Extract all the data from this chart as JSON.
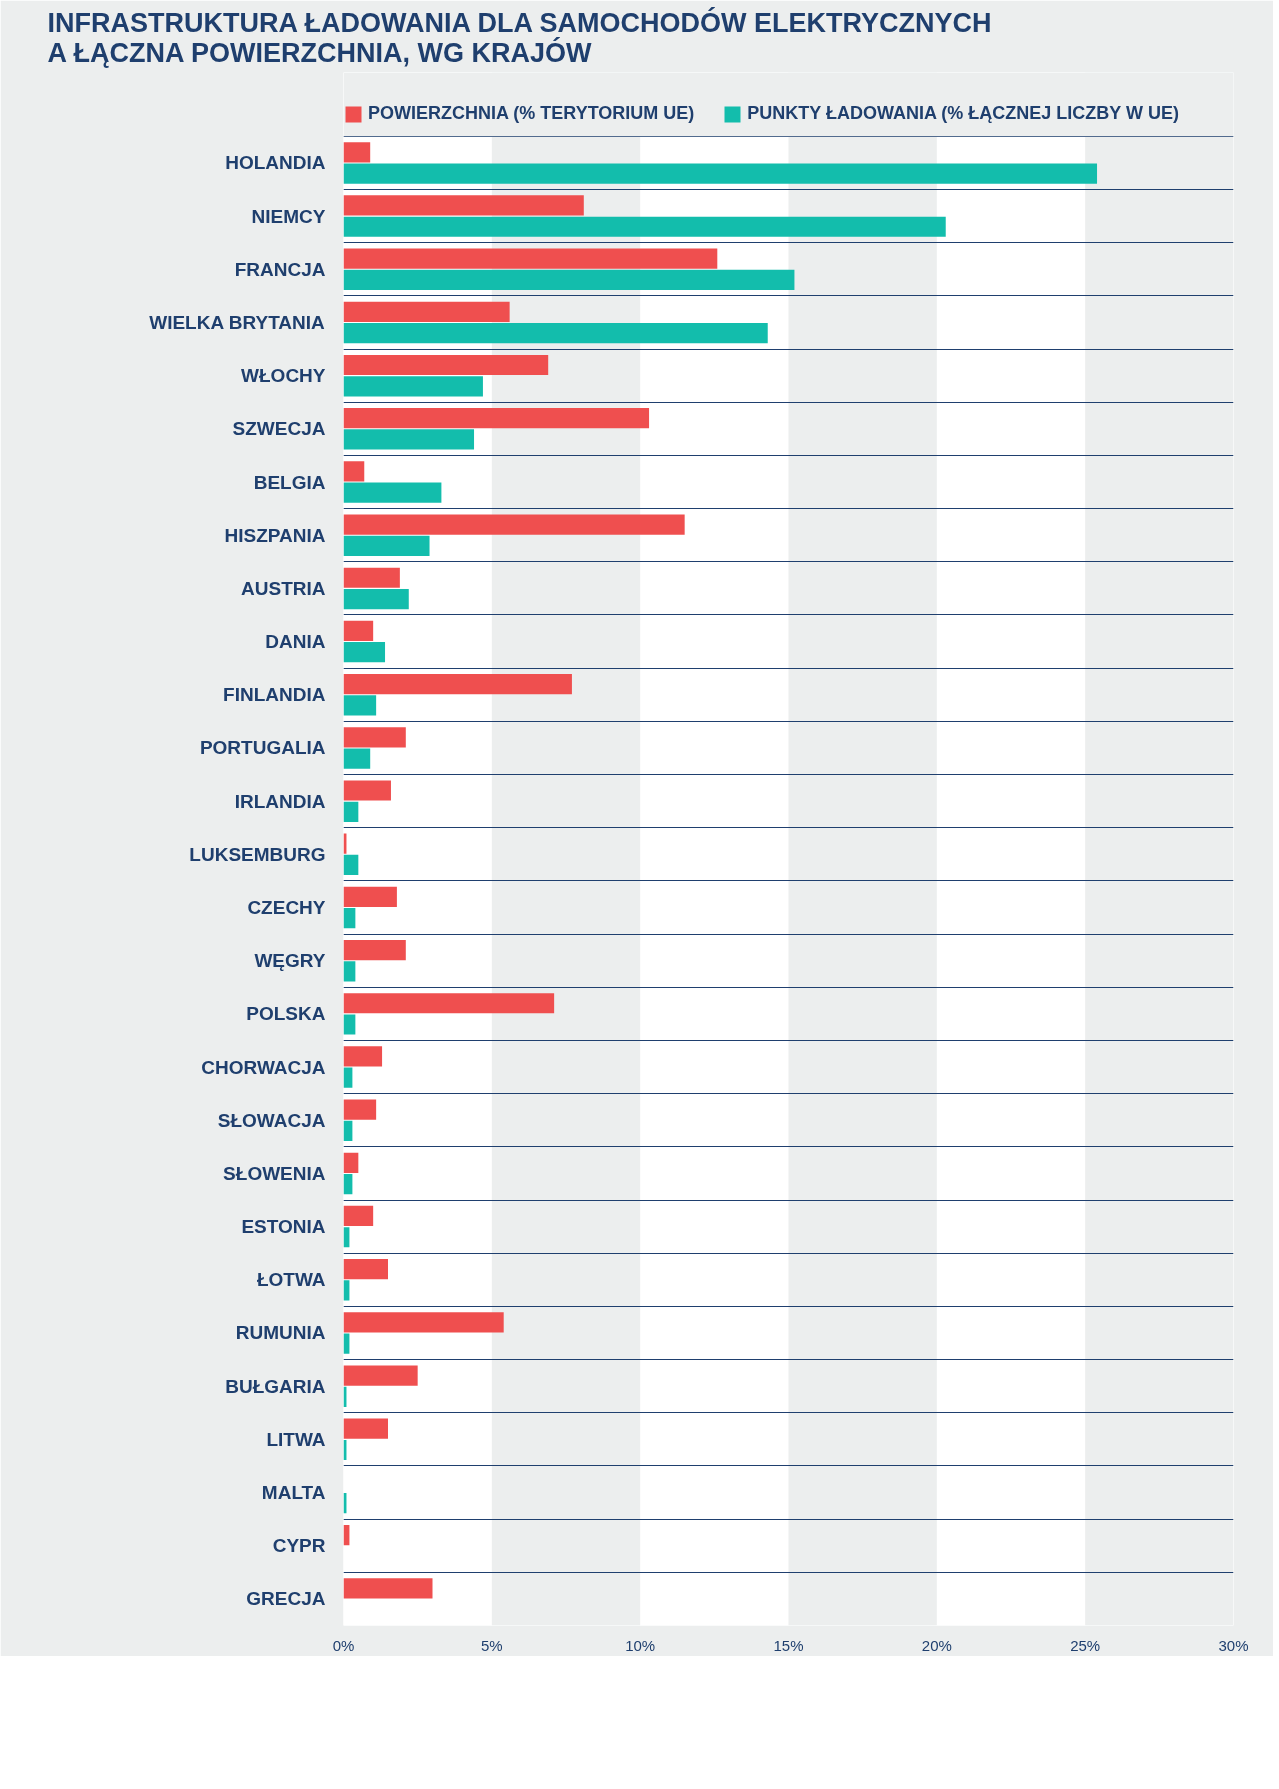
{
  "chart_data": {
    "type": "bar",
    "orientation": "horizontal",
    "title": "INFRASTRUKTURA ŁADOWANIA DLA SAMOCHODÓW ELEKTRYCZNYCH\nA ŁĄCZNA POWIERZCHNIA, WG KRAJÓW",
    "categories": [
      "HOLANDIA",
      "NIEMCY",
      "FRANCJA",
      "WIELKA BRYTANIA",
      "WŁOCHY",
      "SZWECJA",
      "BELGIA",
      "HISZPANIA",
      "AUSTRIA",
      "DANIA",
      "FINLANDIA",
      "PORTUGALIA",
      "IRLANDIA",
      "LUKSEMBURG",
      "CZECHY",
      "WĘGRY",
      "POLSKA",
      "CHORWACJA",
      "SŁOWACJA",
      "SŁOWENIA",
      "ESTONIA",
      "ŁOTWA",
      "RUMUNIA",
      "BUŁGARIA",
      "LITWA",
      "MALTA",
      "CYPR",
      "GRECJA"
    ],
    "series": [
      {
        "name": "POWIERZCHNIA (% TERYTORIUM UE)",
        "color": "#ef4f4f",
        "values": [
          0.9,
          8.1,
          12.6,
          5.6,
          6.9,
          10.3,
          0.7,
          11.5,
          1.9,
          1.0,
          7.7,
          2.1,
          1.6,
          0.1,
          1.8,
          2.1,
          7.1,
          1.3,
          1.1,
          0.5,
          1.0,
          1.5,
          5.4,
          2.5,
          1.5,
          0.0,
          0.2,
          3.0
        ]
      },
      {
        "name": "PUNKTY ŁADOWANIA (% ŁĄCZNEJ LICZBY W UE)",
        "color": "#13bdac",
        "values": [
          25.4,
          20.3,
          15.2,
          14.3,
          4.7,
          4.4,
          3.3,
          2.9,
          2.2,
          1.4,
          1.1,
          0.9,
          0.5,
          0.5,
          0.4,
          0.4,
          0.4,
          0.3,
          0.3,
          0.3,
          0.2,
          0.2,
          0.2,
          0.1,
          0.1,
          0.1,
          0.0,
          0.0
        ]
      }
    ],
    "xlim": [
      0,
      30
    ],
    "xticks": [
      {
        "value": 0,
        "label": "0%"
      },
      {
        "value": 5,
        "label": "5%"
      },
      {
        "value": 10,
        "label": "10%"
      },
      {
        "value": 15,
        "label": "15%"
      },
      {
        "value": 20,
        "label": "20%"
      },
      {
        "value": 25,
        "label": "25%"
      },
      {
        "value": 30,
        "label": "30%"
      }
    ],
    "grid": true,
    "legend": "top left"
  }
}
